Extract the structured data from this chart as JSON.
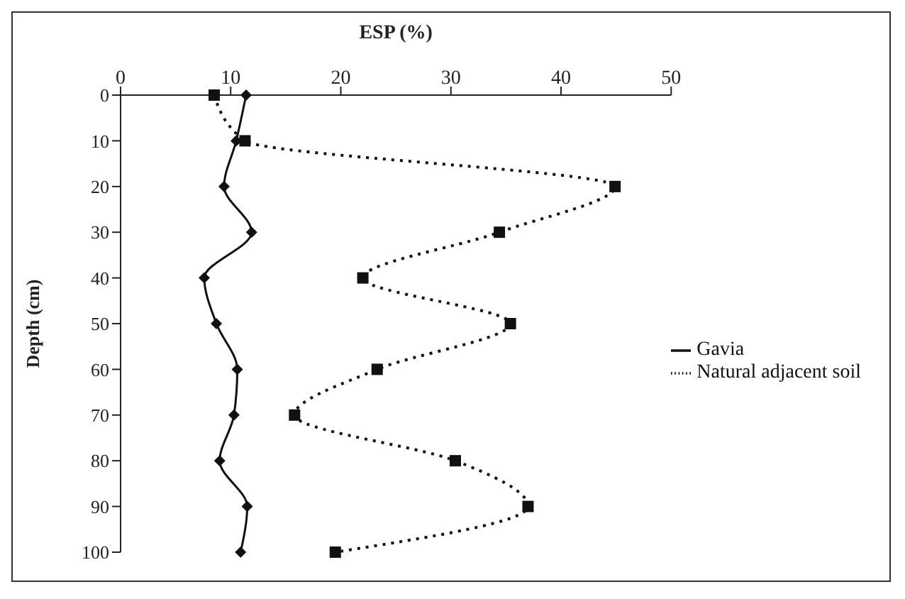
{
  "chart_data": {
    "type": "line",
    "orientation": "horizontal",
    "xlabel": "ESP (%)",
    "ylabel": "Depth (cm)",
    "categories": [
      "0",
      "10",
      "20",
      "30",
      "40",
      "50",
      "60",
      "70",
      "80",
      "90",
      "100"
    ],
    "xlim": [
      0,
      50
    ],
    "xticks": [
      0,
      10,
      20,
      30,
      40,
      50
    ],
    "grid": false,
    "legend": "right",
    "series": [
      {
        "name": "Gavia",
        "color": "#111111",
        "marker": "diamond",
        "line_style": "solid",
        "values": [
          11.4,
          10.5,
          9.4,
          11.9,
          7.6,
          8.7,
          10.6,
          10.3,
          9.0,
          11.5,
          10.9
        ]
      },
      {
        "name": "Natural adjacent soil",
        "color": "#111111",
        "marker": "square",
        "line_style": "dotted",
        "values": [
          8.5,
          11.3,
          44.9,
          34.4,
          22.0,
          35.4,
          23.3,
          15.8,
          30.4,
          37.0,
          19.5
        ]
      }
    ]
  }
}
